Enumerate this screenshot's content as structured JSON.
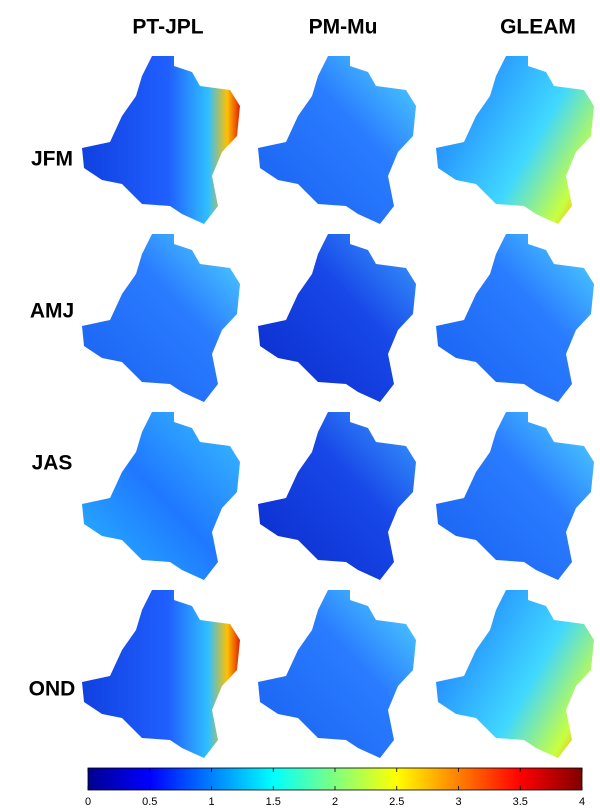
{
  "columns": [
    "PT-JPL",
    "PM-Mu",
    "GLEAM"
  ],
  "rows": [
    "JFM",
    "AMJ",
    "JAS",
    "OND"
  ],
  "colorbar": {
    "lim": [
      0,
      4
    ],
    "ticks": [
      0,
      0.5,
      1,
      1.5,
      2,
      2.5,
      3,
      3.5,
      4
    ]
  }
}
